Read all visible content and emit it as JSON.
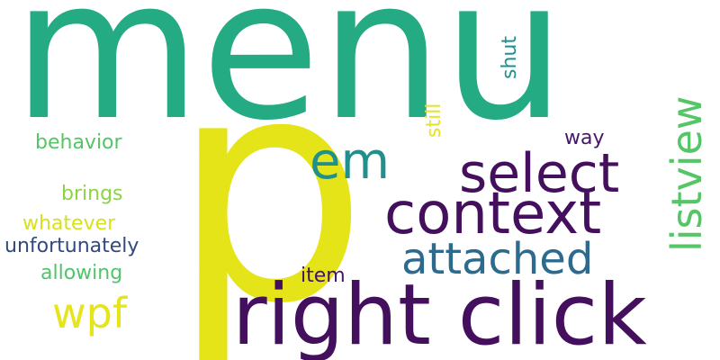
{
  "words": {
    "menu": {
      "text": "menu",
      "color": "#25ab83"
    },
    "p": {
      "text": "p",
      "color": "#e4e419"
    },
    "right_click": {
      "text": "right click",
      "color": "#440f5c"
    },
    "context": {
      "text": "context",
      "color": "#440f5c"
    },
    "select": {
      "text": "select",
      "color": "#440f5c"
    },
    "em": {
      "text": "em",
      "color": "#21908d"
    },
    "attached": {
      "text": "attached",
      "color": "#2c6b8e"
    },
    "listview": {
      "text": "listview",
      "color": "#55c567"
    },
    "wpf": {
      "text": "wpf",
      "color": "#e6e41a"
    },
    "way": {
      "text": "way",
      "color": "#481668"
    },
    "shut": {
      "text": "shut",
      "color": "#1f918d"
    },
    "still": {
      "text": "still",
      "color": "#e1e51b"
    },
    "behavior": {
      "text": "behavior",
      "color": "#55c567"
    },
    "brings": {
      "text": "brings",
      "color": "#8cd443"
    },
    "whatever": {
      "text": "whatever",
      "color": "#d6e21a"
    },
    "unfortunately": {
      "text": "unfortunately",
      "color": "#32487f"
    },
    "allowing": {
      "text": "allowing",
      "color": "#4fc56a"
    },
    "item": {
      "text": "item",
      "color": "#471266"
    }
  }
}
